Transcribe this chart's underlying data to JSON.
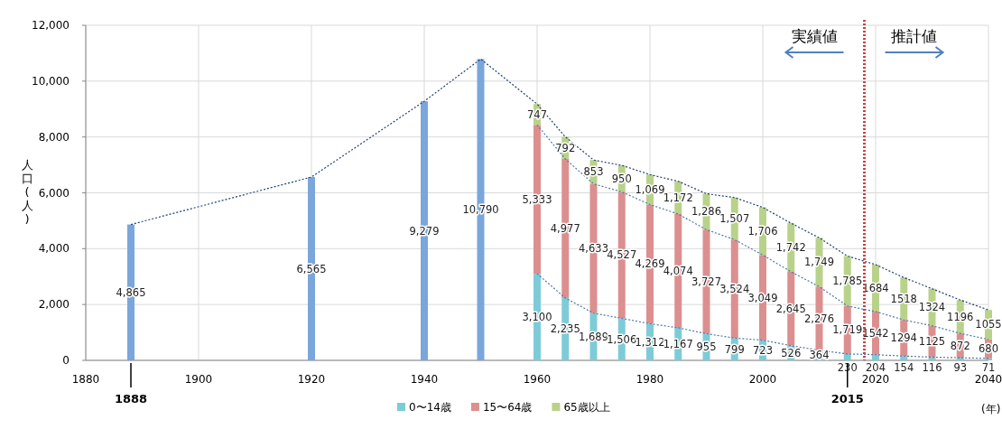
{
  "chart_data": {
    "type": "bar",
    "stacked": true,
    "ylabel": "人口(人)",
    "xlabel": "(年)",
    "xlim": [
      1880,
      2040
    ],
    "xticks": [
      1880,
      1900,
      1920,
      1940,
      1960,
      1980,
      2000,
      2020,
      2040
    ],
    "ylim": [
      0,
      12000
    ],
    "yticks": [
      0,
      {
        "value": 2000,
        "label": "2,000"
      },
      {
        "value": 4000,
        "label": "4,000"
      },
      {
        "value": 6000,
        "label": "6,000"
      },
      {
        "value": 8000,
        "label": "8,000"
      },
      {
        "value": 10000,
        "label": "10,000"
      },
      {
        "value": 12000,
        "label": "12,000"
      }
    ],
    "grid": true,
    "legend": "bottom",
    "x": [
      1888,
      1920,
      1940,
      1950,
      1960,
      1965,
      1970,
      1975,
      1980,
      1985,
      1990,
      1995,
      2000,
      2005,
      2010,
      2015,
      2020,
      2025,
      2030,
      2035,
      2040
    ],
    "series": [
      {
        "color": "#7aa6db",
        "values": [
          4865,
          6565,
          9279,
          10790,
          null,
          null,
          null,
          null,
          null,
          null,
          null,
          null,
          null,
          null,
          null,
          null,
          null,
          null,
          null,
          null,
          null
        ],
        "value_labels": [
          "4,865",
          "6,565",
          "9,279",
          "10,790",
          null,
          null,
          null,
          null,
          null,
          null,
          null,
          null,
          null,
          null,
          null,
          null,
          null,
          null,
          null,
          null,
          null
        ]
      },
      {
        "name": "0〜14歳",
        "color": "#7ecbd8",
        "values": [
          null,
          null,
          null,
          null,
          3100,
          2235,
          1689,
          1506,
          1312,
          1167,
          955,
          799,
          723,
          526,
          364,
          230,
          204,
          154,
          116,
          93,
          71
        ],
        "value_labels": [
          null,
          null,
          null,
          null,
          "3,100",
          "2,235",
          "1,689",
          "1,506",
          "1,312",
          "1,167",
          "955",
          "799",
          "723",
          "526",
          "364",
          "230",
          "204",
          "154",
          "116",
          "93",
          "71"
        ]
      },
      {
        "name": "15〜64歳",
        "color": "#dc8f8f",
        "values": [
          null,
          null,
          null,
          null,
          5333,
          4977,
          4633,
          4527,
          4269,
          4074,
          3727,
          3524,
          3049,
          2645,
          2276,
          1719,
          1542,
          1294,
          1125,
          872,
          680
        ],
        "value_labels": [
          null,
          null,
          null,
          null,
          "5,333",
          "4,977",
          "4,633",
          "4,527",
          "4,269",
          "4,074",
          "3,727",
          "3,524",
          "3,049",
          "2,645",
          "2,276",
          "1,719",
          "1542",
          "1294",
          "1125",
          "872",
          "680"
        ]
      },
      {
        "name": "65歳以上",
        "color": "#b9d28a",
        "values": [
          null,
          null,
          null,
          null,
          747,
          792,
          853,
          950,
          1069,
          1172,
          1286,
          1507,
          1706,
          1742,
          1749,
          1785,
          1684,
          1518,
          1324,
          1196,
          1055
        ],
        "value_labels": [
          null,
          null,
          null,
          null,
          "747",
          "792",
          "853",
          "950",
          "1,069",
          "1,172",
          "1,286",
          "1,507",
          "1,706",
          "1,742",
          "1,749",
          "1,785",
          "1684",
          "1518",
          "1324",
          "1196",
          "1055"
        ]
      },
      {
        "type": "line",
        "color": "#1f3f73",
        "line_style": "dotted",
        "x": [
          1888,
          1920,
          1940,
          1950,
          1960,
          1965,
          1970,
          1975,
          1980,
          1985,
          1990,
          1995,
          2000,
          2005,
          2010,
          2015,
          2020,
          2025,
          2030,
          2035,
          2040
        ],
        "values": [
          4865,
          6565,
          9279,
          10790,
          9180,
          8004,
          7175,
          6983,
          6650,
          6413,
          5968,
          5830,
          5478,
          4913,
          4389,
          3734,
          3430,
          2966,
          2565,
          2161,
          1806
        ]
      },
      {
        "type": "line",
        "color": "#4f78a8",
        "line_style": "dotted",
        "x": [
          1960,
          1965,
          1970,
          1975,
          1980,
          1985,
          1990,
          1995,
          2000,
          2005,
          2010,
          2015,
          2020,
          2025,
          2030,
          2035,
          2040
        ],
        "values": [
          8433,
          7212,
          6322,
          6033,
          5581,
          5241,
          4682,
          4323,
          3772,
          3171,
          2640,
          1949,
          1746,
          1448,
          1241,
          965,
          751
        ]
      },
      {
        "type": "line",
        "color": "#4f78a8",
        "line_style": "dotted",
        "x": [
          1960,
          1965,
          1970,
          1975,
          1980,
          1985,
          1990,
          1995,
          2000,
          2005,
          2010,
          2015,
          2020,
          2025,
          2030,
          2035,
          2040
        ],
        "values": [
          3100,
          2235,
          1689,
          1506,
          1312,
          1167,
          955,
          799,
          723,
          526,
          364,
          230,
          204,
          154,
          116,
          93,
          71
        ]
      }
    ],
    "ref_lines": [
      {
        "axis": "x",
        "value": 2018,
        "color": "#d04040",
        "line_style": "dotted"
      }
    ],
    "annotations": [
      {
        "text": "1888",
        "x": 1888,
        "y": 0
      },
      {
        "text": "2015",
        "x": 2015,
        "y": 0
      },
      "実績値",
      "推計値"
    ]
  }
}
